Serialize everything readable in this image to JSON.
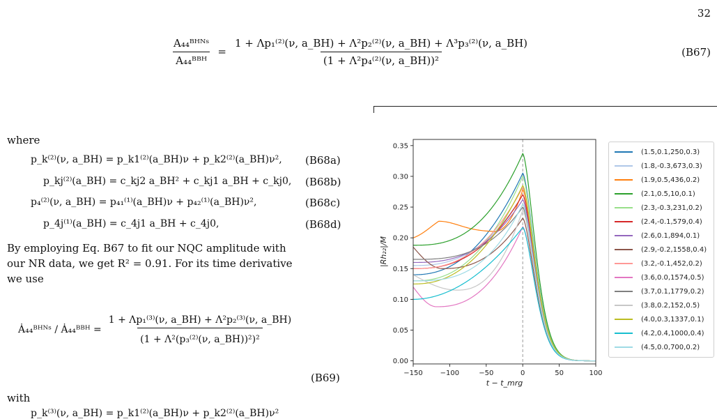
{
  "page_number": "32",
  "eq_b67": {
    "lhs_num": "A₄₄ᴮᴴᴺˢ",
    "lhs_den": "A₄₄ᴮᴮᴴ",
    "rhs_num": "1 + Λp₁⁽²⁾(ν, a_BH) + Λ²p₂⁽²⁾(ν, a_BH) + Λ³p₃⁽²⁾(ν, a_BH)",
    "rhs_den": "(1 + Λ²p₄⁽²⁾(ν, a_BH))²",
    "label": "(B67)"
  },
  "text_where": "where",
  "eq_b68": [
    {
      "expr": "p_k⁽²⁾(ν, a_BH) = p_k1⁽²⁾(a_BH)ν + p_k2⁽²⁾(a_BH)ν²,",
      "label": "(B68a)"
    },
    {
      "expr": "p_kj⁽²⁾(a_BH) = c_kj2 a_BH² + c_kj1 a_BH + c_kj0,",
      "label": "(B68b)"
    },
    {
      "expr": "p₄⁽²⁾(ν, a_BH) = p₄₁⁽¹⁾(a_BH)ν + p₄₂⁽¹⁾(a_BH)ν²,",
      "label": "(B68c)"
    },
    {
      "expr": "p_4j⁽¹⁾(a_BH) = c_4j1 a_BH + c_4j0,",
      "label": "(B68d)"
    }
  ],
  "paragraph": [
    "By employing Eq. B67 to fit our NQC amplitude with",
    "our NR data, we get R² = 0.91. For its time derivative",
    "we use"
  ],
  "eq_b69": {
    "lhs": "Ȧ₄₄ᴮᴴᴺˢ / Ȧ₄₄ᴮᴮᴴ =",
    "rhs_num": "1 + Λp₁⁽³⁾(ν, a_BH) + Λ²p₂⁽³⁾(ν, a_BH)",
    "rhs_den": "(1 + Λ²(p₃⁽²⁾(ν, a_BH))²)²",
    "label": "(B69)"
  },
  "text_with": "with",
  "eq_partial": "p_k⁽³⁾(ν, a_BH) = p_k1⁽²⁾(a_BH)ν + p_k2⁽²⁾(a_BH)ν²",
  "chart_data": {
    "type": "line",
    "xlabel": "t − t_mrg",
    "ylabel": "|Rh₂₂|/M",
    "xlim": [
      -150,
      100
    ],
    "ylim": [
      -0.005,
      0.36
    ],
    "xticks": [
      -150,
      -100,
      -50,
      0,
      50,
      100
    ],
    "yticks": [
      0.0,
      0.05,
      0.1,
      0.15,
      0.2,
      0.25,
      0.3,
      0.35
    ],
    "ytick_labels": [
      "0.00",
      "0.05",
      "0.10",
      "0.15",
      "0.20",
      "0.25",
      "0.30",
      "0.35"
    ],
    "xtick_labels": [
      "−150",
      "−100",
      "−50",
      "0",
      "50",
      "100"
    ],
    "vline_x": 0,
    "legend_position": "right, outside",
    "series": [
      {
        "name": "(1.5,0.1,250,0.3)",
        "color": "#1f77b4",
        "peak": 0.305,
        "start": 0.14,
        "curve": 0.55
      },
      {
        "name": "(1.8,-0.3,673,0.3)",
        "color": "#aec7e8",
        "peak": 0.27,
        "start": 0.155,
        "curve": 0.45
      },
      {
        "name": "(1.9,0.5,436,0.2)",
        "color": "#ff7f0e",
        "peak": 0.278,
        "start": 0.2,
        "bump": 0.227,
        "bump_x": -115
      },
      {
        "name": "(2.1,0.5,10,0.1)",
        "color": "#2ca02c",
        "peak": 0.337,
        "start": 0.188,
        "curve": 0.4
      },
      {
        "name": "(2.3,-0.3,231,0.2)",
        "color": "#98df8a",
        "peak": 0.3,
        "start": 0.13,
        "curve": 0.5
      },
      {
        "name": "(2.4,-0.1,579,0.4)",
        "color": "#d62728",
        "peak": 0.27,
        "start": 0.15,
        "curve": 0.45
      },
      {
        "name": "(2.6,0.1,894,0.1)",
        "color": "#9467bd",
        "peak": 0.262,
        "start": 0.16,
        "curve": 0.4
      },
      {
        "name": "(2.9,-0.2,1558,0.4)",
        "color": "#8c564b",
        "peak": 0.232,
        "start": 0.185,
        "dip": 0.15,
        "dip_x": -110
      },
      {
        "name": "(3.2,-0.1,452,0.2)",
        "color": "#ff9896",
        "peak": 0.282,
        "start": 0.15,
        "curve": 0.45
      },
      {
        "name": "(3.6,0.0,1574,0.5)",
        "color": "#e377c2",
        "peak": 0.218,
        "start": 0.12,
        "dip": 0.088,
        "dip_x": -118
      },
      {
        "name": "(3.7,0.1,1779,0.2)",
        "color": "#7f7f7f",
        "peak": 0.25,
        "start": 0.165,
        "curve": 0.35
      },
      {
        "name": "(3.8,0.2,152,0.5)",
        "color": "#c7c7c7",
        "peak": 0.245,
        "start": 0.14,
        "dip": 0.115,
        "dip_x": -90
      },
      {
        "name": "(4.0,0.3,1337,0.1)",
        "color": "#bcbd22",
        "peak": 0.285,
        "start": 0.125,
        "curve": 0.55
      },
      {
        "name": "(4.2,0.4,1000,0.4)",
        "color": "#17becf",
        "peak": 0.217,
        "start": 0.1,
        "curve": 0.8
      },
      {
        "name": "(4.5,0.0,700,0.2)",
        "color": "#9edae5",
        "peak": 0.255,
        "start": 0.13,
        "curve": 0.35
      }
    ]
  }
}
